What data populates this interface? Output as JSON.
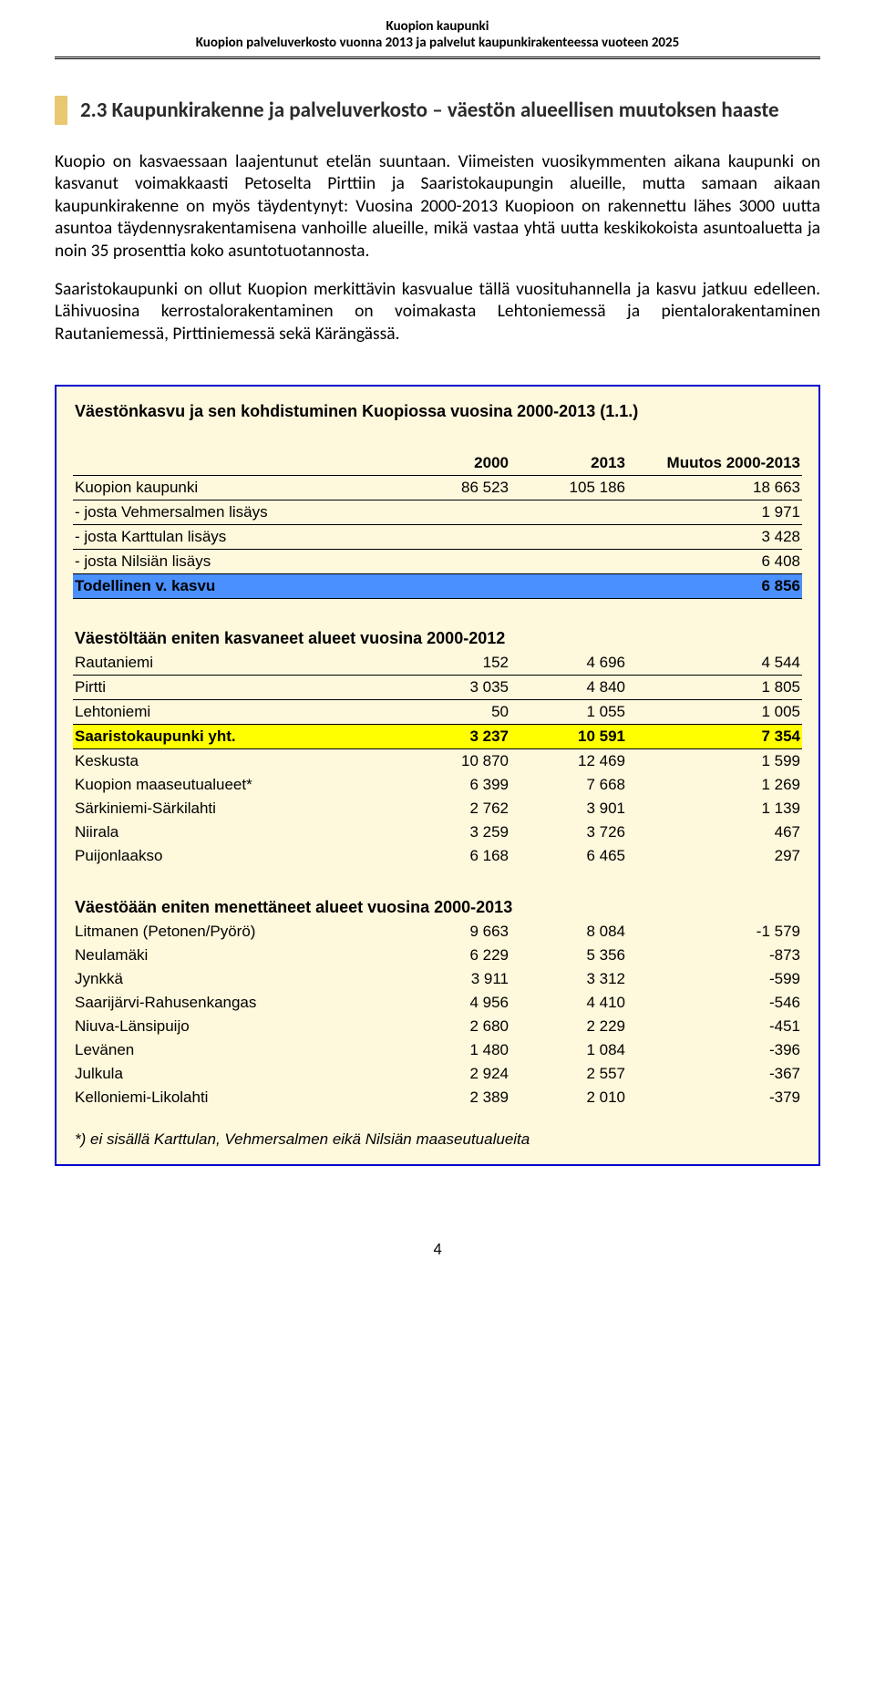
{
  "header": {
    "line1": "Kuopion kaupunki",
    "line2": "Kuopion palveluverkosto vuonna 2013 ja palvelut kaupunkirakenteessa vuoteen 2025"
  },
  "section": {
    "accent_color": "#e8c870",
    "heading": "2.3 Kaupunkirakenne ja palveluverkosto – väestön alueellisen muutoksen haaste",
    "heading_color": "#2a2a2a"
  },
  "paragraphs": {
    "p1": "Kuopio on kasvaessaan laajentunut etelän suuntaan. Viimeisten vuosikymmenten aikana kaupunki on kasvanut voimakkaasti Petoselta Pirttiin ja Saaristokaupungin alueille, mutta samaan aikaan kaupunkirakenne on myös täydentynyt: Vuosina 2000-2013 Kuopioon on rakennettu lähes 3000 uutta asuntoa täydennysrakentamisena vanhoille alueille, mikä vastaa yhtä uutta keskikokoista asuntoaluetta ja noin 35 prosenttia koko asuntotuotannosta.",
    "p2": "Saaristokaupunki on ollut Kuopion merkittävin kasvualue tällä vuosituhannella ja kasvu jatkuu edelleen. Lähivuosina kerrostalorakentaminen on voimakasta Lehtoniemessä ja pientalorakentaminen Rautaniemessä, Pirttiniemessä sekä Kärängässä."
  },
  "table": {
    "background": "#fef8dc",
    "border_color": "#0000cc",
    "blue_hl": "#4a90ff",
    "yellow_hl": "#ffff00",
    "title": "Väestönkasvu ja sen kohdistuminen Kuopiossa vuosina 2000-2013 (1.1.)",
    "col_headers": {
      "c1": "2000",
      "c2": "2013",
      "c3": "Muutos 2000-2013"
    },
    "top": {
      "kuopio": {
        "label": "Kuopion kaupunki",
        "c1": "86 523",
        "c2": "105 186",
        "c3": "18 663"
      },
      "vehmersalmi": {
        "label": " - josta Vehmersalmen lisäys",
        "c3": "1 971"
      },
      "karttula": {
        "label": " - josta Karttulan lisäys",
        "c3": "3 428"
      },
      "nilsia": {
        "label": " - josta Nilsiän lisäys",
        "c3": "6 408"
      },
      "todellinen": {
        "label": "Todellinen v. kasvu",
        "c3": "6 856"
      }
    },
    "grown_title": "Väestöltään eniten kasvaneet alueet vuosina 2000-2012",
    "grown": [
      {
        "label": "Rautaniemi",
        "c1": "152",
        "c2": "4 696",
        "c3": "4 544"
      },
      {
        "label": "Pirtti",
        "c1": "3 035",
        "c2": "4 840",
        "c3": "1 805"
      },
      {
        "label": "Lehtoniemi",
        "c1": "50",
        "c2": "1 055",
        "c3": "1 005"
      }
    ],
    "saaristo": {
      "label": "Saaristokaupunki yht.",
      "c1": "3 237",
      "c2": "10 591",
      "c3": "7 354"
    },
    "grown2": [
      {
        "label": "Keskusta",
        "c1": "10 870",
        "c2": "12 469",
        "c3": "1 599"
      },
      {
        "label": "Kuopion maaseutualueet*",
        "c1": "6 399",
        "c2": "7 668",
        "c3": "1 269"
      },
      {
        "label": "Särkiniemi-Särkilahti",
        "c1": "2 762",
        "c2": "3 901",
        "c3": "1 139"
      },
      {
        "label": "Niirala",
        "c1": "3 259",
        "c2": "3 726",
        "c3": "467"
      },
      {
        "label": "Puijonlaakso",
        "c1": "6 168",
        "c2": "6 465",
        "c3": "297"
      }
    ],
    "lost_title": "Väestöään eniten menettäneet alueet vuosina 2000-2013",
    "lost": [
      {
        "label": "Litmanen (Petonen/Pyörö)",
        "c1": "9 663",
        "c2": "8 084",
        "c3": "-1 579"
      },
      {
        "label": "Neulamäki",
        "c1": "6 229",
        "c2": "5 356",
        "c3": "-873"
      },
      {
        "label": "Jynkkä",
        "c1": "3 911",
        "c2": "3 312",
        "c3": "-599"
      },
      {
        "label": "Saarijärvi-Rahusenkangas",
        "c1": "4 956",
        "c2": "4 410",
        "c3": "-546"
      },
      {
        "label": "Niuva-Länsipuijo",
        "c1": "2 680",
        "c2": "2 229",
        "c3": "-451"
      },
      {
        "label": "Levänen",
        "c1": "1 480",
        "c2": "1 084",
        "c3": "-396"
      },
      {
        "label": "Julkula",
        "c1": "2 924",
        "c2": "2 557",
        "c3": "-367"
      },
      {
        "label": "Kelloniemi-Likolahti",
        "c1": "2 389",
        "c2": "2 010",
        "c3": "-379"
      }
    ],
    "footnote": "*) ei sisällä Karttulan, Vehmersalmen eikä Nilsiän maaseutualueita"
  },
  "page_number": "4"
}
